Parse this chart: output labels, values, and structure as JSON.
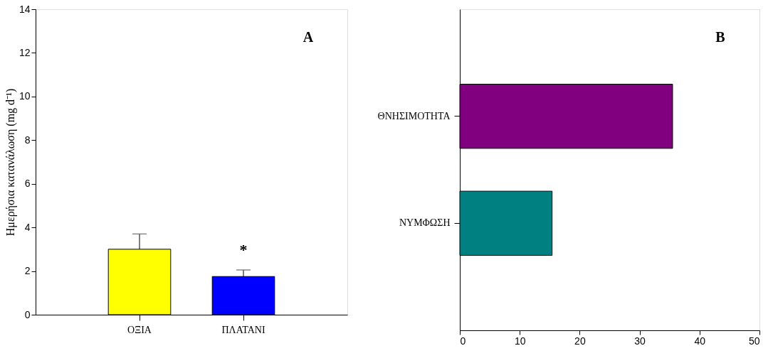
{
  "chart_data": [
    {
      "type": "bar",
      "ylabel": "Ημερήσια κατανάλωση (mg d⁻¹)",
      "categories": [
        "ΟΞΙΑ",
        "ΠΛΑΤΑΝΙ"
      ],
      "values": [
        3.0,
        1.75
      ],
      "colors": [
        "#ffff00",
        "#0000ff"
      ],
      "errors": [
        0.7,
        0.3
      ],
      "ylim": [
        0,
        14
      ],
      "yticks": [
        0,
        2,
        4,
        6,
        8,
        10,
        12,
        14
      ],
      "grid": false,
      "annotations": [
        "A",
        {
          "text": "*",
          "x": "ΠΛΑΤΑΝΙ",
          "y": 2.05
        }
      ]
    },
    {
      "type": "bar",
      "orientation": "horizontal",
      "categories": [
        "ΘΝΗΣΙΜΟΤΗΤΑ",
        "ΝΥΜΦΩΣΗ"
      ],
      "values": [
        35.5,
        15.4
      ],
      "colors": [
        "#800080",
        "#008080"
      ],
      "xlim": [
        0,
        50
      ],
      "xticks": [
        0,
        10,
        20,
        30,
        40,
        50
      ],
      "grid": false,
      "annotations": [
        "B"
      ]
    }
  ]
}
